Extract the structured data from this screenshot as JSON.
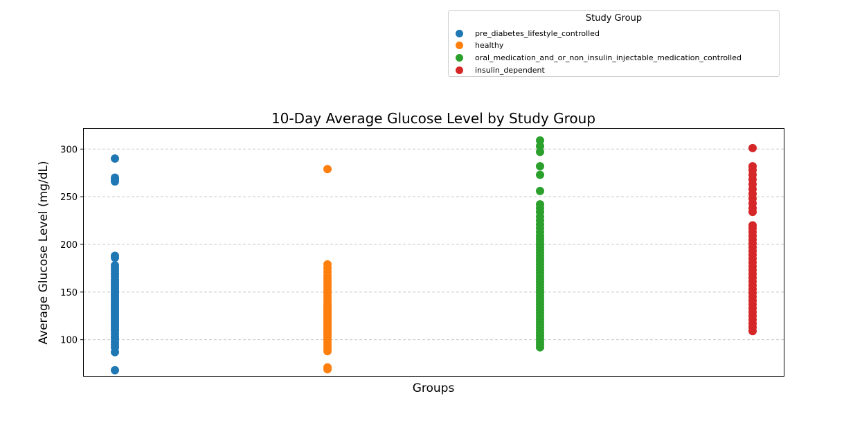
{
  "chart_data": {
    "type": "scatter",
    "title": "10-Day Average Glucose Level by Study Group",
    "xlabel": "Groups",
    "ylabel": "Average Glucose Level (mg/dL)",
    "ylim": [
      62,
      322
    ],
    "yticks": [
      100,
      150,
      200,
      250,
      300
    ],
    "grid": "y-dashed",
    "legend": {
      "title": "Study Group",
      "placement": "top-right"
    },
    "categories": [
      "pre_diabetes_lifestyle_controlled",
      "healthy",
      "oral_medication_and_or_non_insulin_injectable_medication_controlled",
      "insulin_dependent"
    ],
    "series": [
      {
        "name": "pre_diabetes_lifestyle_controlled",
        "color": "#1f77b4",
        "values": [
          68,
          87,
          92,
          95,
          98,
          101,
          103,
          106,
          109,
          111,
          113,
          115,
          117,
          119,
          121,
          123,
          125,
          127,
          129,
          131,
          133,
          135,
          137,
          139,
          141,
          143,
          145,
          147,
          149,
          151,
          153,
          155,
          157,
          159,
          161,
          163,
          166,
          169,
          172,
          175,
          178,
          186,
          188,
          266,
          268,
          270,
          290
        ]
      },
      {
        "name": "healthy",
        "color": "#ff7f0e",
        "values": [
          69,
          71,
          88,
          91,
          94,
          97,
          100,
          103,
          105,
          107,
          109,
          111,
          113,
          115,
          117,
          119,
          121,
          123,
          125,
          127,
          129,
          131,
          133,
          135,
          137,
          140,
          143,
          146,
          149,
          152,
          155,
          158,
          161,
          164,
          167,
          171,
          175,
          179,
          279
        ]
      },
      {
        "name": "oral_medication_and_or_non_insulin_injectable_medication_controlled",
        "color": "#2ca02c",
        "values": [
          92,
          95,
          98,
          101,
          104,
          107,
          110,
          113,
          116,
          119,
          122,
          125,
          128,
          131,
          134,
          137,
          140,
          143,
          146,
          149,
          152,
          155,
          158,
          161,
          164,
          167,
          170,
          173,
          176,
          179,
          182,
          185,
          188,
          191,
          194,
          197,
          200,
          203,
          206,
          209,
          213,
          217,
          221,
          225,
          229,
          234,
          238,
          242,
          256,
          273,
          282,
          297,
          303,
          309
        ]
      },
      {
        "name": "insulin_dependent",
        "color": "#d62728",
        "values": [
          109,
          113,
          117,
          121,
          125,
          129,
          133,
          137,
          141,
          145,
          149,
          153,
          157,
          161,
          165,
          169,
          173,
          177,
          181,
          185,
          189,
          193,
          197,
          201,
          205,
          209,
          213,
          217,
          220,
          234,
          238,
          243,
          248,
          253,
          258,
          263,
          268,
          273,
          278,
          282,
          301
        ]
      }
    ]
  }
}
